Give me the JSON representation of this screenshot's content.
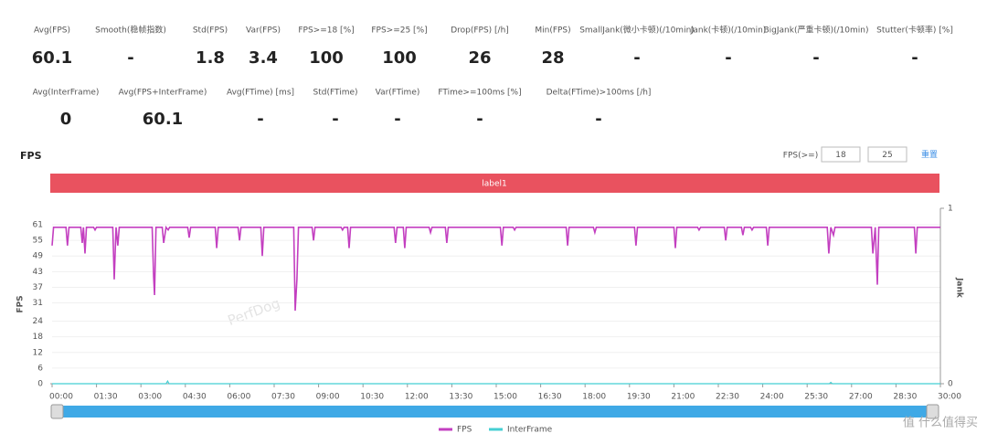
{
  "stats": {
    "row1": [
      {
        "label": "Avg(FPS)",
        "value": 60.1
      },
      {
        "label": "Smooth(稳帧指数)",
        "value": "-"
      },
      {
        "label": "Std(FPS)",
        "value": 1.8
      },
      {
        "label": "Var(FPS)",
        "value": 3.4
      },
      {
        "label": "FPS>=18 [%]",
        "value": 100
      },
      {
        "label": "FPS>=25 [%]",
        "value": 100
      },
      {
        "label": "Drop(FPS) [/h]",
        "value": 26
      },
      {
        "label": "Min(FPS)",
        "value": 28
      },
      {
        "label": "SmallJank(微小卡顿)(/10min)",
        "value": "-"
      },
      {
        "label": "Jank(卡顿)(/10min)",
        "value": "-"
      },
      {
        "label": "BigJank(严重卡顿)(/10min)",
        "value": "-"
      },
      {
        "label": "Stutter(卡顿率) [%]",
        "value": "-"
      }
    ],
    "row2": [
      {
        "label": "Avg(InterFrame)",
        "value": 0
      },
      {
        "label": "Avg(FPS+InterFrame)",
        "value": 60.1
      },
      {
        "label": "Avg(FTime) [ms]",
        "value": "-"
      },
      {
        "label": "Std(FTime)",
        "value": "-"
      },
      {
        "label": "Var(FTime)",
        "value": "-"
      },
      {
        "label": "FTime>=100ms [%]",
        "value": "-"
      },
      {
        "label": "Delta(FTime)>100ms [/h]",
        "value": "-"
      }
    ]
  },
  "section": {
    "title": "FPS",
    "threshold_label": "FPS(>=)",
    "threshold_1": "18",
    "threshold_2": "25",
    "reset": "重置",
    "label_bar": "label1",
    "watermark": "PerfDog",
    "site_mark": "值 什么值得买"
  },
  "chart_data": {
    "type": "line",
    "ylabel": "FPS",
    "y2label": "Jank",
    "xlim": [
      0,
      30
    ],
    "ylim": [
      0,
      67.3
    ],
    "y2lim": [
      0,
      1
    ],
    "xticks": [
      {
        "value": 0,
        "label": "00:00"
      },
      {
        "value": 1.5,
        "label": "01:30"
      },
      {
        "value": 3,
        "label": "03:00"
      },
      {
        "value": 4.5,
        "label": "04:30"
      },
      {
        "value": 6,
        "label": "06:00"
      },
      {
        "value": 7.5,
        "label": "07:30"
      },
      {
        "value": 9,
        "label": "09:00"
      },
      {
        "value": 10.5,
        "label": "10:30"
      },
      {
        "value": 12,
        "label": "12:00"
      },
      {
        "value": 13.5,
        "label": "13:30"
      },
      {
        "value": 15,
        "label": "15:00"
      },
      {
        "value": 16.5,
        "label": "16:30"
      },
      {
        "value": 18,
        "label": "18:00"
      },
      {
        "value": 19.5,
        "label": "19:30"
      },
      {
        "value": 21,
        "label": "21:00"
      },
      {
        "value": 22.5,
        "label": "22:30"
      },
      {
        "value": 24,
        "label": "24:00"
      },
      {
        "value": 25.5,
        "label": "25:30"
      },
      {
        "value": 27,
        "label": "27:00"
      },
      {
        "value": 28.5,
        "label": "28:30"
      },
      {
        "value": 30,
        "label": "30:00"
      }
    ],
    "yticks": [
      0,
      6,
      12,
      18,
      24,
      31,
      37,
      43,
      49,
      55,
      61
    ],
    "y2ticks": [
      0,
      1
    ],
    "grid": true,
    "series": [
      {
        "name": "FPS",
        "color": "#c33fc0",
        "x": [
          0,
          0.05,
          0.47,
          0.52,
          0.57,
          0.97,
          1.02,
          1.06,
          1.11,
          1.16,
          1.4,
          1.45,
          1.5,
          2.05,
          2.1,
          2.16,
          2.22,
          2.27,
          3.38,
          3.43,
          3.46,
          3.51,
          3.72,
          3.77,
          3.85,
          3.92,
          3.97,
          4.58,
          4.63,
          4.68,
          5.51,
          5.56,
          5.61,
          6.28,
          6.33,
          6.38,
          7.05,
          7.1,
          7.15,
          8.16,
          8.21,
          8.27,
          8.32,
          8.78,
          8.83,
          8.88,
          9.76,
          9.81,
          9.86,
          9.98,
          10.03,
          10.08,
          11.55,
          11.6,
          11.65,
          11.86,
          11.91,
          11.96,
          12.73,
          12.78,
          12.83,
          13.28,
          13.33,
          13.38,
          15.14,
          15.19,
          15.24,
          15.57,
          15.62,
          15.67,
          17.36,
          17.41,
          17.46,
          18.28,
          18.33,
          18.38,
          19.67,
          19.72,
          19.77,
          21,
          21.05,
          21.1,
          21.8,
          21.85,
          21.9,
          22.7,
          22.75,
          22.8,
          23.28,
          23.33,
          23.38,
          23.59,
          23.64,
          23.69,
          24.12,
          24.17,
          24.22,
          26.18,
          26.23,
          26.3,
          26.39,
          26.44,
          27.67,
          27.72,
          27.8,
          27.87,
          27.92,
          29.12,
          29.17,
          29.22,
          30
        ],
        "values": [
          53,
          60,
          60,
          53,
          60,
          60,
          54,
          60,
          50,
          60,
          60,
          59,
          60,
          60,
          40,
          60,
          53,
          60,
          60,
          41,
          34,
          60,
          60,
          54,
          60,
          59,
          60,
          60,
          56,
          60,
          60,
          52,
          60,
          60,
          55,
          60,
          60,
          49,
          60,
          60,
          28,
          40,
          60,
          60,
          55,
          60,
          60,
          59,
          60,
          60,
          52,
          60,
          60,
          54,
          60,
          60,
          52,
          60,
          60,
          58,
          60,
          60,
          54,
          60,
          60,
          53,
          60,
          60,
          59,
          60,
          60,
          53,
          60,
          60,
          58,
          60,
          60,
          53,
          60,
          60,
          52,
          60,
          60,
          59,
          60,
          60,
          55,
          60,
          60,
          57,
          60,
          60,
          59,
          60,
          60,
          53,
          60,
          60,
          50,
          60,
          57,
          60,
          60,
          50,
          60,
          38,
          60,
          60,
          50,
          60,
          60
        ]
      },
      {
        "name": "InterFrame",
        "color": "#45cfd3",
        "x": [
          0,
          3.85,
          3.9,
          3.95,
          26.25,
          26.3,
          26.35,
          30
        ],
        "values": [
          0,
          0,
          1,
          0,
          0,
          0.5,
          0,
          0
        ]
      }
    ]
  }
}
